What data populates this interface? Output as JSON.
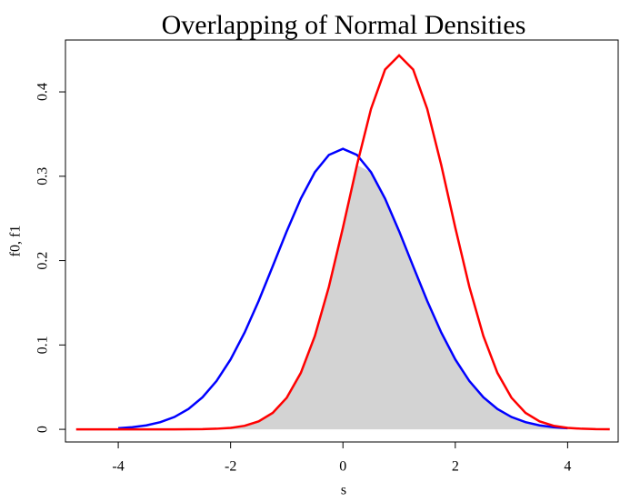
{
  "chart_data": {
    "type": "line",
    "title": "Overlapping of Normal Densities",
    "x_label": "s",
    "y_label": "f0, f1",
    "x": [
      -4.75,
      -4.5,
      -4.25,
      -4,
      -3.75,
      -3.5,
      -3.25,
      -3,
      -2.75,
      -2.5,
      -2.25,
      -2,
      -1.75,
      -1.5,
      -1.25,
      -1,
      -0.75,
      -0.5,
      -0.25,
      0,
      0.25,
      0.5,
      0.75,
      1,
      1.25,
      1.5,
      1.75,
      2,
      2.25,
      2.5,
      2.75,
      3,
      3.25,
      3.5,
      3.75,
      4,
      4.25,
      4.5,
      4.75
    ],
    "series": [
      {
        "color": "#0000ff",
        "values": [
          null,
          null,
          null,
          0.0013,
          0.0025,
          0.0047,
          0.0085,
          0.0146,
          0.0241,
          0.038,
          0.0573,
          0.0829,
          0.1148,
          0.1522,
          0.1933,
          0.2349,
          0.2735,
          0.3048,
          0.3253,
          0.3325,
          0.3253,
          0.3048,
          0.2735,
          0.2349,
          0.1933,
          0.1522,
          0.1148,
          0.0829,
          0.0573,
          0.038,
          0.0241,
          0.0146,
          0.0085,
          0.0047,
          0.0025,
          0.0013,
          null,
          null,
          null
        ]
      },
      {
        "color": "#ff0000",
        "values": [
          0,
          0,
          0,
          0,
          0,
          0,
          0,
          0,
          0.0001,
          0.0002,
          0.0007,
          0.0017,
          0.0042,
          0.0094,
          0.0195,
          0.0375,
          0.0669,
          0.1106,
          0.169,
          0.2391,
          0.3133,
          0.3799,
          0.4265,
          0.4433,
          0.4265,
          0.3799,
          0.3133,
          0.2391,
          0.169,
          0.1106,
          0.0669,
          0.0375,
          0.0195,
          0.0094,
          0.0042,
          0.0017,
          0.0007,
          0.0002,
          0.0001
        ]
      }
    ],
    "overlap_color": "#d3d3d3",
    "xlim": [
      -4.94,
      4.9
    ],
    "ylim": [
      -0.015,
      0.4615
    ],
    "xticks": [
      -4,
      -2,
      0,
      2,
      4
    ],
    "yticks": [
      0,
      0.1,
      0.2,
      0.3,
      0.4
    ]
  }
}
